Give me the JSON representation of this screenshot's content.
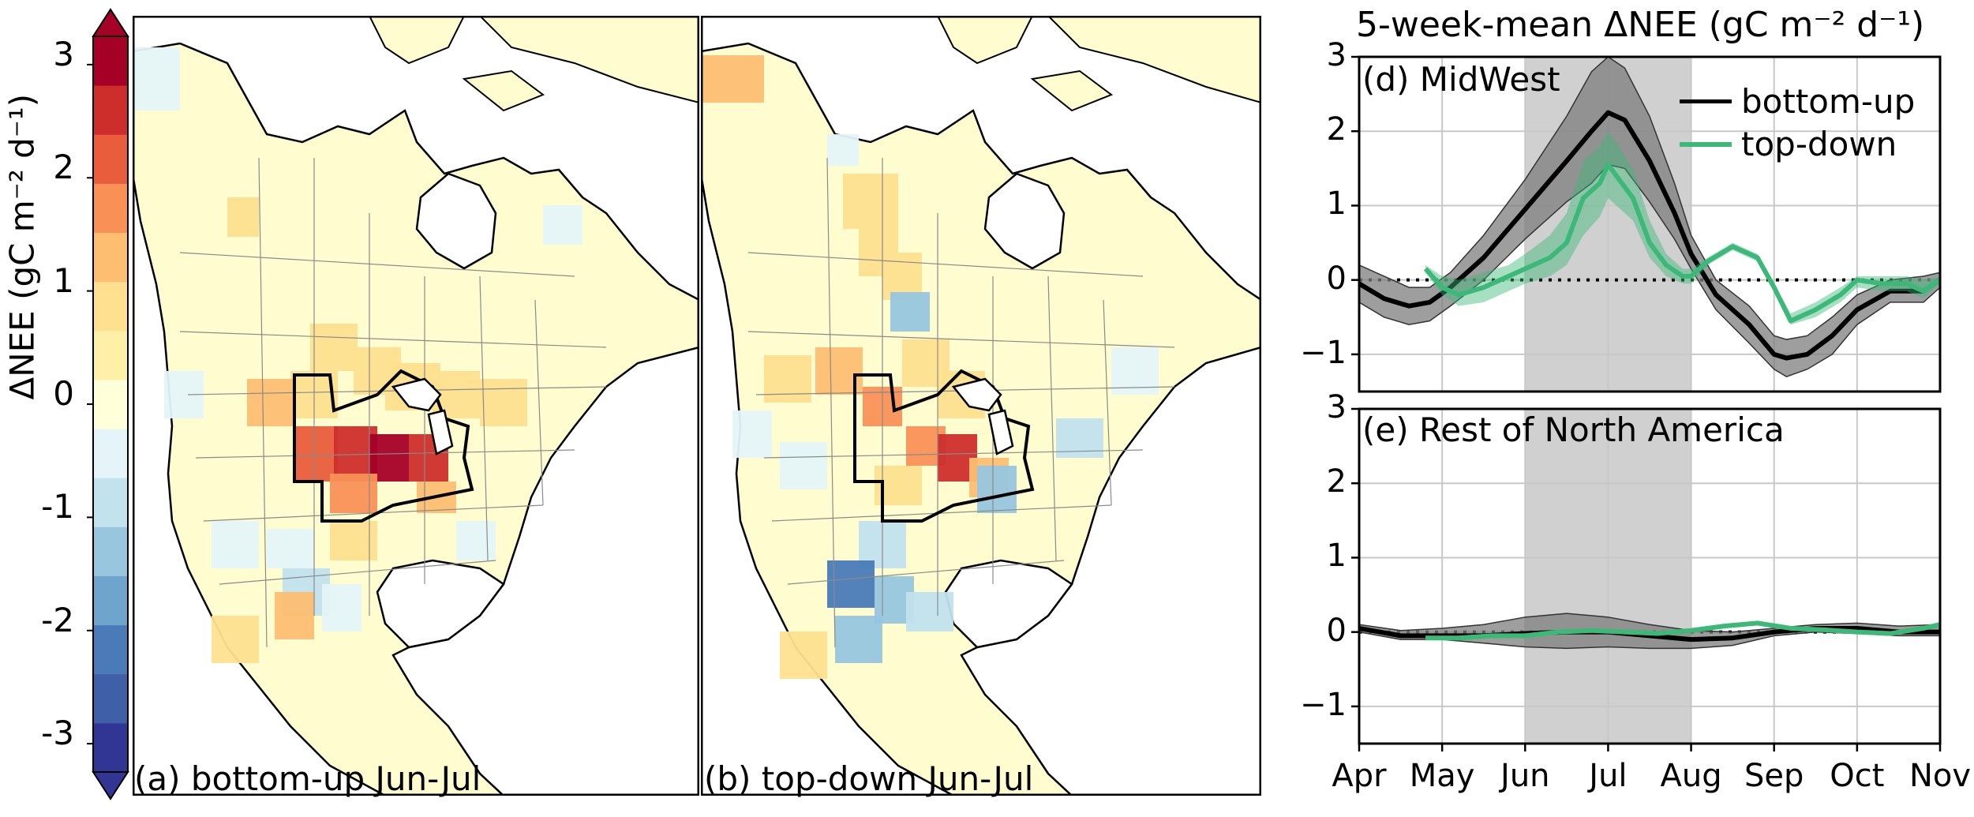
{
  "figure": {
    "colorbar": {
      "label": "ΔNEE (gC m⁻² d⁻¹)",
      "ticks": [
        "3",
        "2",
        "1",
        "0",
        "-1",
        "-2",
        "-3"
      ],
      "tick_values": [
        3,
        2,
        1,
        0,
        -1,
        -2,
        -3
      ],
      "range": [
        -3.25,
        3.25
      ],
      "colors": [
        "#313695",
        "#3f5fa9",
        "#4a7ab7",
        "#6fa5cd",
        "#98c6df",
        "#c2e2ee",
        "#e5f4f8",
        "#ffffd9",
        "#fff0a8",
        "#fee090",
        "#fdbe72",
        "#f99157",
        "#e95d3c",
        "#ce2e2b",
        "#a50026"
      ]
    },
    "maps": [
      {
        "id": "a",
        "label": "(a) bottom-up Jun-Jul"
      },
      {
        "id": "b",
        "label": "(b) top-down Jun-Jul"
      }
    ],
    "timeseries_title": "5-week-mean ΔNEE (gC m⁻² d⁻¹)"
  },
  "colors": {
    "bottom_up": "#000000",
    "top_down": "#3cb878",
    "band": "#bdbdbd",
    "map_bg": "#fffdcf",
    "shade": "#d0d0d0"
  },
  "chart_data": [
    {
      "type": "line",
      "title": "(d) MidWest",
      "x_labels": [
        "Apr",
        "May",
        "Jun",
        "Jul",
        "Aug",
        "Sep",
        "Oct",
        "Nov"
      ],
      "ylim": [
        -1.5,
        3
      ],
      "yticks": [
        "3",
        "2",
        "1",
        "0",
        "−1"
      ],
      "ytick_values": [
        3,
        2,
        1,
        0,
        -1
      ],
      "grid": true,
      "shaded_period": [
        "Jun",
        "Aug"
      ],
      "legend": {
        "entries": [
          "bottom-up",
          "top-down"
        ],
        "placement": "top-right"
      },
      "series": [
        {
          "name": "bottom-up",
          "x": [
            0,
            0.3,
            0.6,
            0.85,
            1.1,
            1.5,
            2.0,
            2.5,
            2.8,
            3.0,
            3.2,
            3.5,
            3.8,
            4.0,
            4.3,
            4.7,
            5.0,
            5.15,
            5.4,
            5.7,
            6.0,
            6.4,
            6.8,
            7.0
          ],
          "y": [
            -0.05,
            -0.25,
            -0.35,
            -0.3,
            -0.1,
            0.3,
            0.95,
            1.6,
            2.0,
            2.25,
            2.15,
            1.6,
            0.9,
            0.35,
            -0.2,
            -0.6,
            -1.0,
            -1.05,
            -1.0,
            -0.75,
            -0.4,
            -0.15,
            -0.15,
            0.0
          ],
          "upper": [
            0.2,
            0.05,
            -0.1,
            -0.1,
            0.1,
            0.6,
            1.35,
            2.2,
            2.8,
            3.0,
            2.85,
            2.2,
            1.3,
            0.6,
            0.0,
            -0.35,
            -0.75,
            -0.8,
            -0.75,
            -0.5,
            -0.2,
            0.0,
            0.05,
            0.1
          ],
          "lower": [
            -0.3,
            -0.5,
            -0.6,
            -0.55,
            -0.35,
            0.0,
            0.55,
            1.05,
            1.3,
            1.55,
            1.5,
            1.05,
            0.55,
            0.15,
            -0.4,
            -0.85,
            -1.2,
            -1.3,
            -1.2,
            -1.0,
            -0.6,
            -0.3,
            -0.3,
            -0.1
          ]
        },
        {
          "name": "top-down",
          "x": [
            0.8,
            1.0,
            1.2,
            1.5,
            1.8,
            2.0,
            2.3,
            2.5,
            2.7,
            2.9,
            3.0,
            3.1,
            3.3,
            3.5,
            3.7,
            3.9,
            4.0,
            4.2,
            4.5,
            4.8,
            5.0,
            5.2,
            5.5,
            5.8,
            6.0,
            6.3,
            6.6,
            6.8,
            7.0
          ],
          "y": [
            0.15,
            -0.1,
            -0.2,
            -0.1,
            0.05,
            0.15,
            0.3,
            0.5,
            1.1,
            1.3,
            1.55,
            1.4,
            1.1,
            0.5,
            0.2,
            0.05,
            0.05,
            0.25,
            0.45,
            0.3,
            -0.1,
            -0.55,
            -0.4,
            -0.2,
            0.0,
            -0.05,
            -0.05,
            -0.15,
            0.0
          ],
          "upper": [
            0.2,
            0.05,
            0.0,
            0.1,
            0.2,
            0.35,
            0.6,
            0.9,
            1.6,
            1.8,
            2.0,
            1.85,
            1.5,
            0.8,
            0.35,
            0.15,
            0.15,
            0.3,
            0.5,
            0.35,
            -0.05,
            -0.45,
            -0.3,
            -0.1,
            0.05,
            0.05,
            0.05,
            0.0,
            0.05
          ],
          "lower": [
            0.1,
            -0.2,
            -0.35,
            -0.3,
            -0.15,
            -0.05,
            0.05,
            0.2,
            0.6,
            0.85,
            1.1,
            1.0,
            0.8,
            0.3,
            0.05,
            -0.05,
            -0.05,
            0.2,
            0.4,
            0.25,
            -0.15,
            -0.6,
            -0.5,
            -0.3,
            -0.1,
            -0.15,
            -0.15,
            -0.25,
            -0.05
          ]
        }
      ]
    },
    {
      "type": "line",
      "title": "(e) Rest of North America",
      "x_labels": [
        "Apr",
        "May",
        "Jun",
        "Jul",
        "Aug",
        "Sep",
        "Oct",
        "Nov"
      ],
      "ylim": [
        -1.5,
        3
      ],
      "yticks": [
        "3",
        "2",
        "1",
        "0",
        "−1"
      ],
      "ytick_values": [
        3,
        2,
        1,
        0,
        -1
      ],
      "grid": true,
      "shaded_period": [
        "Jun",
        "Aug"
      ],
      "series": [
        {
          "name": "bottom-up",
          "x": [
            0,
            0.5,
            1.0,
            1.5,
            2.0,
            2.5,
            3.0,
            3.5,
            4.0,
            4.5,
            5.0,
            5.5,
            6.0,
            6.5,
            7.0
          ],
          "y": [
            0.05,
            -0.05,
            -0.05,
            -0.05,
            -0.02,
            0.0,
            0.0,
            -0.05,
            -0.1,
            -0.08,
            0.0,
            0.05,
            0.05,
            0.0,
            0.0
          ],
          "upper": [
            0.1,
            0.02,
            0.05,
            0.1,
            0.2,
            0.25,
            0.2,
            0.1,
            0.02,
            0.0,
            0.05,
            0.1,
            0.12,
            0.08,
            0.1
          ],
          "lower": [
            0.0,
            -0.1,
            -0.1,
            -0.15,
            -0.2,
            -0.22,
            -0.2,
            -0.22,
            -0.22,
            -0.18,
            -0.05,
            0.0,
            -0.02,
            -0.05,
            -0.05
          ]
        },
        {
          "name": "top-down",
          "x": [
            0.8,
            1.2,
            1.6,
            2.0,
            2.4,
            2.8,
            3.2,
            3.6,
            4.0,
            4.4,
            4.8,
            5.2,
            5.6,
            6.0,
            6.4,
            6.8,
            7.0
          ],
          "y": [
            -0.08,
            -0.08,
            -0.05,
            -0.05,
            0.0,
            0.02,
            0.0,
            -0.02,
            0.02,
            0.08,
            0.12,
            0.05,
            0.03,
            0.0,
            -0.02,
            0.05,
            0.1
          ],
          "upper": [
            -0.05,
            -0.05,
            -0.02,
            -0.02,
            0.03,
            0.05,
            0.03,
            0.01,
            0.05,
            0.1,
            0.14,
            0.07,
            0.05,
            0.02,
            0.0,
            0.08,
            0.14
          ],
          "lower": [
            -0.11,
            -0.11,
            -0.08,
            -0.08,
            -0.03,
            -0.01,
            -0.03,
            -0.05,
            -0.01,
            0.05,
            0.1,
            0.03,
            0.01,
            -0.02,
            -0.05,
            0.02,
            0.06
          ]
        }
      ]
    }
  ]
}
